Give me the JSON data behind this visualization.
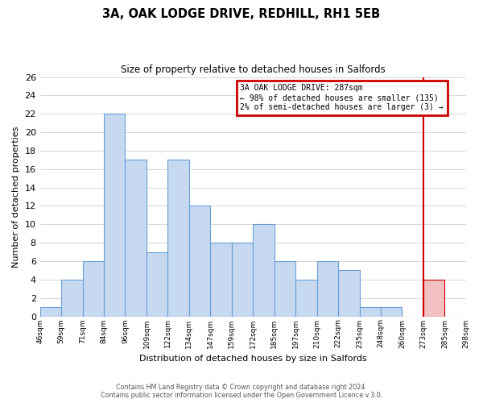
{
  "title": "3A, OAK LODGE DRIVE, REDHILL, RH1 5EB",
  "subtitle": "Size of property relative to detached houses in Salfords",
  "xlabel": "Distribution of detached houses by size in Salfords",
  "ylabel": "Number of detached properties",
  "bar_labels": [
    "46sqm",
    "59sqm",
    "71sqm",
    "84sqm",
    "96sqm",
    "109sqm",
    "122sqm",
    "134sqm",
    "147sqm",
    "159sqm",
    "172sqm",
    "185sqm",
    "197sqm",
    "210sqm",
    "222sqm",
    "235sqm",
    "248sqm",
    "260sqm",
    "273sqm",
    "285sqm",
    "298sqm"
  ],
  "bar_heights": [
    1,
    4,
    6,
    22,
    17,
    7,
    17,
    12,
    8,
    8,
    10,
    6,
    4,
    6,
    5,
    1,
    1,
    0,
    4,
    0
  ],
  "bar_color_normal": "#c6d9f0",
  "bar_color_highlight": "#f2c0c0",
  "bar_edge_normal": "#6a9fd8",
  "bar_edge_highlight": "#cc0000",
  "highlight_bar_idx": 18,
  "vline_x": 18,
  "vline_color": "#cc0000",
  "annotation_title": "3A OAK LODGE DRIVE: 287sqm",
  "annotation_line1": "← 98% of detached houses are smaller (135)",
  "annotation_line2": "2% of semi-detached houses are larger (3) →",
  "annotation_box_color": "#cc0000",
  "ylim": [
    0,
    26
  ],
  "yticks": [
    0,
    2,
    4,
    6,
    8,
    10,
    12,
    14,
    16,
    18,
    20,
    22,
    24,
    26
  ],
  "footer_line1": "Contains HM Land Registry data © Crown copyright and database right 2024.",
  "footer_line2": "Contains public sector information licensed under the Open Government Licence v.3.0.",
  "bg_color": "#ffffff",
  "grid_color": "#d0d0d0"
}
